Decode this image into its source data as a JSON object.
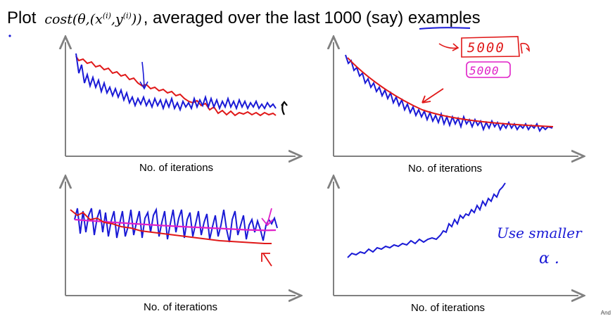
{
  "title": {
    "prefix": "Plot",
    "formula": "cost(θ,(x(i),y(i)))",
    "before_number": ", averaged over the last",
    "number": "1000",
    "after_number": "(say) examples"
  },
  "plots": [
    {
      "xlabel": "No. of iterations"
    },
    {
      "xlabel": "No. of iterations"
    },
    {
      "xlabel": "No. of iterations"
    },
    {
      "xlabel": "No. of iterations"
    }
  ],
  "annotations": {
    "boxed_number": "5000",
    "pink_number": "5000",
    "note_line1": "Use smaller",
    "note_line2": "α ."
  },
  "corner_text": "And",
  "colors": {
    "blue": "#1a1ad6",
    "red": "#e01818",
    "magenta": "#e020c8",
    "axis": "#808080"
  }
}
